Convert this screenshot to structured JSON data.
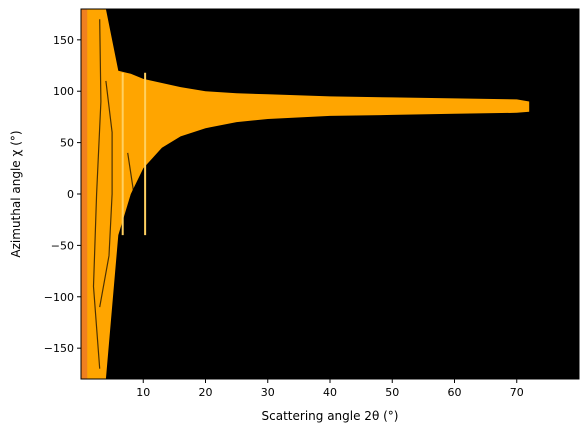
{
  "chart_data": {
    "type": "heatmap",
    "title": "",
    "xlabel": "Scattering angle 2θ (°)",
    "ylabel": "Azimuthal angle χ (°)",
    "xlim": [
      0,
      80
    ],
    "ylim": [
      -180,
      180
    ],
    "x_ticks": [
      10,
      20,
      30,
      40,
      50,
      60,
      70
    ],
    "y_ticks": [
      -150,
      -100,
      -50,
      0,
      50,
      100,
      150
    ],
    "grid": false,
    "colors": {
      "background": "#000000",
      "intensity_main": "#FFA500",
      "intensity_high": "#F08020",
      "intensity_peak": "#FFD060"
    },
    "data_region": {
      "band_upper_chi_vs_2theta": [
        [
          0,
          180
        ],
        [
          2,
          180
        ],
        [
          4,
          180
        ],
        [
          6,
          120
        ],
        [
          8,
          117
        ],
        [
          10,
          112
        ],
        [
          13,
          108
        ],
        [
          16,
          104
        ],
        [
          20,
          100
        ],
        [
          25,
          98
        ],
        [
          30,
          97
        ],
        [
          40,
          95
        ],
        [
          50,
          94
        ],
        [
          60,
          93
        ],
        [
          70,
          92
        ],
        [
          72,
          90
        ]
      ],
      "band_lower_chi_vs_2theta": [
        [
          0,
          -180
        ],
        [
          2,
          -180
        ],
        [
          4,
          -180
        ],
        [
          6,
          -40
        ],
        [
          8,
          0
        ],
        [
          10,
          25
        ],
        [
          13,
          45
        ],
        [
          16,
          56
        ],
        [
          20,
          64
        ],
        [
          25,
          70
        ],
        [
          30,
          73
        ],
        [
          40,
          76
        ],
        [
          50,
          77
        ],
        [
          60,
          78
        ],
        [
          70,
          79
        ],
        [
          72,
          80
        ]
      ],
      "bright_ring_2theta": [
        6.7,
        10.3
      ]
    }
  }
}
